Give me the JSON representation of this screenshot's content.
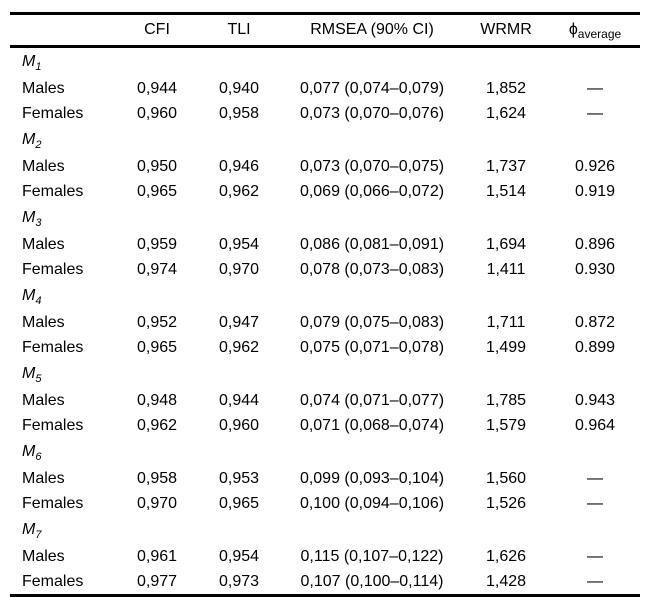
{
  "page": {
    "background": "#ffffff",
    "text_color": "#000000",
    "rule_color": "#000000"
  },
  "table": {
    "headers": {
      "stub": "",
      "cfi": "CFI",
      "tli": "TLI",
      "rmsea": "RMSEA (90% CI)",
      "wrmr": "WRMR",
      "phi_symbol": "ϕ",
      "phi_subscript": "average"
    },
    "groups": [
      {
        "label_base": "M",
        "label_subscript": "1",
        "rows": [
          {
            "name": "Males",
            "cfi": "0,944",
            "tli": "0,940",
            "rmsea": "0,077 (0,074–0,079)",
            "wrmr": "1,852",
            "phi_average": "—"
          },
          {
            "name": "Females",
            "cfi": "0,960",
            "tli": "0,958",
            "rmsea": "0,073 (0,070–0,076)",
            "wrmr": "1,624",
            "phi_average": "—"
          }
        ]
      },
      {
        "label_base": "M",
        "label_subscript": "2",
        "rows": [
          {
            "name": "Males",
            "cfi": "0,950",
            "tli": "0,946",
            "rmsea": "0,073 (0,070–0,075)",
            "wrmr": "1,737",
            "phi_average": "0.926"
          },
          {
            "name": "Females",
            "cfi": "0,965",
            "tli": "0,962",
            "rmsea": "0,069 (0,066–0,072)",
            "wrmr": "1,514",
            "phi_average": "0.919"
          }
        ]
      },
      {
        "label_base": "M",
        "label_subscript": "3",
        "rows": [
          {
            "name": "Males",
            "cfi": "0,959",
            "tli": "0,954",
            "rmsea": "0,086 (0,081–0,091)",
            "wrmr": "1,694",
            "phi_average": "0.896"
          },
          {
            "name": "Females",
            "cfi": "0,974",
            "tli": "0,970",
            "rmsea": "0,078 (0,073–0,083)",
            "wrmr": "1,411",
            "phi_average": "0.930"
          }
        ]
      },
      {
        "label_base": "M",
        "label_subscript": "4",
        "rows": [
          {
            "name": "Males",
            "cfi": "0,952",
            "tli": "0,947",
            "rmsea": "0,079 (0,075–0,083)",
            "wrmr": "1,711",
            "phi_average": "0.872"
          },
          {
            "name": "Females",
            "cfi": "0,965",
            "tli": "0,962",
            "rmsea": "0,075 (0,071–0,078)",
            "wrmr": "1,499",
            "phi_average": "0.899"
          }
        ]
      },
      {
        "label_base": "M",
        "label_subscript": "5",
        "rows": [
          {
            "name": "Males",
            "cfi": "0,948",
            "tli": "0,944",
            "rmsea": "0,074 (0,071–0,077)",
            "wrmr": "1,785",
            "phi_average": "0.943"
          },
          {
            "name": "Females",
            "cfi": "0,962",
            "tli": "0,960",
            "rmsea": "0,071 (0,068–0,074)",
            "wrmr": "1,579",
            "phi_average": "0.964"
          }
        ]
      },
      {
        "label_base": "M",
        "label_subscript": "6",
        "rows": [
          {
            "name": "Males",
            "cfi": "0,958",
            "tli": "0,953",
            "rmsea": "0,099 (0,093–0,104)",
            "wrmr": "1,560",
            "phi_average": "—"
          },
          {
            "name": "Females",
            "cfi": "0,970",
            "tli": "0,965",
            "rmsea": "0,100 (0,094–0,106)",
            "wrmr": "1,526",
            "phi_average": "—"
          }
        ]
      },
      {
        "label_base": "M",
        "label_subscript": "7",
        "rows": [
          {
            "name": "Males",
            "cfi": "0,961",
            "tli": "0,954",
            "rmsea": "0,115 (0,107–0,122)",
            "wrmr": "1,626",
            "phi_average": "—"
          },
          {
            "name": "Females",
            "cfi": "0,977",
            "tli": "0,973",
            "rmsea": "0,107 (0,100–0,114)",
            "wrmr": "1,428",
            "phi_average": "—"
          }
        ]
      }
    ]
  }
}
